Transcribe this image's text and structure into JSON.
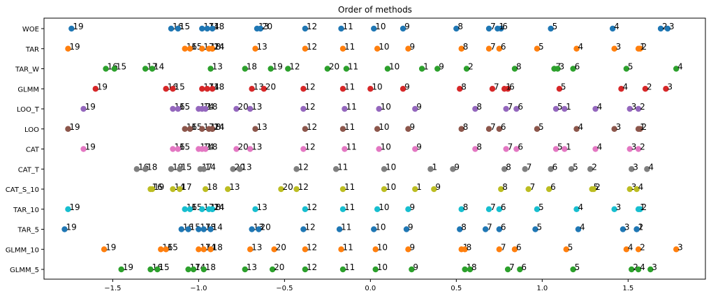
{
  "chart_data": {
    "type": "scatter",
    "title": "Order of methods",
    "xlabel": "",
    "ylabel": "",
    "xlim": [
      -1.9,
      1.95
    ],
    "xticks": [
      "−1.5",
      "−1.0",
      "−0.5",
      "0.0",
      "0.5",
      "1.0",
      "1.5"
    ],
    "xtick_values": [
      -1.5,
      -1.0,
      -0.5,
      0.0,
      0.5,
      1.0,
      1.5
    ],
    "grid": false,
    "series": [
      {
        "row": "WOE",
        "color": "#1f77b4",
        "points": [
          [
            -1.74,
            "19"
          ],
          [
            -1.16,
            "16"
          ],
          [
            -1.12,
            "15"
          ],
          [
            -0.98,
            "17"
          ],
          [
            -0.95,
            "14"
          ],
          [
            -0.92,
            "18"
          ],
          [
            -0.66,
            "13"
          ],
          [
            -0.64,
            "20"
          ],
          [
            -0.38,
            "12"
          ],
          [
            -0.17,
            "11"
          ],
          [
            0.02,
            "10"
          ],
          [
            0.19,
            "9"
          ],
          [
            0.5,
            "8"
          ],
          [
            0.69,
            "7"
          ],
          [
            0.76,
            "6"
          ],
          [
            0.74,
            "1"
          ],
          [
            1.05,
            "5"
          ],
          [
            1.41,
            "4"
          ],
          [
            1.69,
            "2"
          ],
          [
            1.73,
            "3"
          ]
        ]
      },
      {
        "row": "TAR",
        "color": "#ff7f0e",
        "points": [
          [
            -1.76,
            "19"
          ],
          [
            -1.08,
            "16"
          ],
          [
            -1.05,
            "15"
          ],
          [
            -0.98,
            "17"
          ],
          [
            -0.94,
            "18"
          ],
          [
            -0.92,
            "14"
          ],
          [
            -0.92,
            "24"
          ],
          [
            -0.67,
            "13"
          ],
          [
            -0.38,
            "12"
          ],
          [
            -0.16,
            "11"
          ],
          [
            0.04,
            "10"
          ],
          [
            0.22,
            "9"
          ],
          [
            0.53,
            "8"
          ],
          [
            0.69,
            "7"
          ],
          [
            0.75,
            "6"
          ],
          [
            0.97,
            "5"
          ],
          [
            1.2,
            "4"
          ],
          [
            1.42,
            "3"
          ],
          [
            1.57,
            "2"
          ],
          [
            1.56,
            "1"
          ]
        ]
      },
      {
        "row": "TAR_W",
        "color": "#2ca02c",
        "points": [
          [
            -1.54,
            "16"
          ],
          [
            -1.49,
            "15"
          ],
          [
            -1.31,
            "17"
          ],
          [
            -1.27,
            "14"
          ],
          [
            -0.93,
            "13"
          ],
          [
            -0.73,
            "18"
          ],
          [
            -0.58,
            "19"
          ],
          [
            -0.48,
            "12"
          ],
          [
            -0.25,
            "20"
          ],
          [
            -0.14,
            "11"
          ],
          [
            0.1,
            "10"
          ],
          [
            0.3,
            "1"
          ],
          [
            0.39,
            "9"
          ],
          [
            0.56,
            "2"
          ],
          [
            0.84,
            "8"
          ],
          [
            1.07,
            "7"
          ],
          [
            1.09,
            "3"
          ],
          [
            1.18,
            "6"
          ],
          [
            1.49,
            "5"
          ],
          [
            1.78,
            "4"
          ]
        ]
      },
      {
        "row": "GLMM",
        "color": "#d62728",
        "points": [
          [
            -1.6,
            "19"
          ],
          [
            -1.19,
            "16"
          ],
          [
            -1.15,
            "15"
          ],
          [
            -0.98,
            "17"
          ],
          [
            -0.95,
            "14"
          ],
          [
            -0.92,
            "18"
          ],
          [
            -0.69,
            "13"
          ],
          [
            -0.62,
            "20"
          ],
          [
            -0.39,
            "12"
          ],
          [
            -0.16,
            "11"
          ],
          [
            0.0,
            "10"
          ],
          [
            0.19,
            "9"
          ],
          [
            0.52,
            "8"
          ],
          [
            0.71,
            "7"
          ],
          [
            0.8,
            "6"
          ],
          [
            0.78,
            "1"
          ],
          [
            1.1,
            "5"
          ],
          [
            1.46,
            "4"
          ],
          [
            1.6,
            "2"
          ],
          [
            1.72,
            "3"
          ]
        ]
      },
      {
        "row": "LOO_T",
        "color": "#9467bd",
        "points": [
          [
            -1.67,
            "19"
          ],
          [
            -1.15,
            "16"
          ],
          [
            -1.12,
            "15"
          ],
          [
            -1.0,
            "17"
          ],
          [
            -0.98,
            "14"
          ],
          [
            -0.96,
            "18"
          ],
          [
            -0.78,
            "20"
          ],
          [
            -0.7,
            "13"
          ],
          [
            -0.39,
            "12"
          ],
          [
            -0.15,
            "11"
          ],
          [
            0.05,
            "10"
          ],
          [
            0.26,
            "9"
          ],
          [
            0.61,
            "8"
          ],
          [
            0.79,
            "7"
          ],
          [
            0.85,
            "6"
          ],
          [
            1.08,
            "5"
          ],
          [
            1.13,
            "1"
          ],
          [
            1.31,
            "4"
          ],
          [
            1.51,
            "3"
          ],
          [
            1.56,
            "2"
          ]
        ]
      },
      {
        "row": "LOO",
        "color": "#8c564b",
        "points": [
          [
            -1.76,
            "19"
          ],
          [
            -1.08,
            "16"
          ],
          [
            -1.05,
            "15"
          ],
          [
            -0.98,
            "17"
          ],
          [
            -0.94,
            "18"
          ],
          [
            -0.92,
            "14"
          ],
          [
            -0.92,
            "24"
          ],
          [
            -0.67,
            "13"
          ],
          [
            -0.38,
            "12"
          ],
          [
            -0.16,
            "11"
          ],
          [
            0.04,
            "10"
          ],
          [
            0.22,
            "9"
          ],
          [
            0.53,
            "8"
          ],
          [
            0.69,
            "7"
          ],
          [
            0.75,
            "6"
          ],
          [
            0.97,
            "5"
          ],
          [
            1.2,
            "4"
          ],
          [
            1.42,
            "3"
          ],
          [
            1.57,
            "2"
          ],
          [
            1.56,
            "1"
          ]
        ]
      },
      {
        "row": "CAT",
        "color": "#e377c2",
        "points": [
          [
            -1.67,
            "19"
          ],
          [
            -1.15,
            "16"
          ],
          [
            -1.12,
            "15"
          ],
          [
            -1.0,
            "17"
          ],
          [
            -0.98,
            "14"
          ],
          [
            -0.96,
            "18"
          ],
          [
            -0.78,
            "20"
          ],
          [
            -0.7,
            "13"
          ],
          [
            -0.39,
            "12"
          ],
          [
            -0.15,
            "11"
          ],
          [
            0.05,
            "10"
          ],
          [
            0.26,
            "9"
          ],
          [
            0.61,
            "8"
          ],
          [
            0.79,
            "7"
          ],
          [
            0.85,
            "6"
          ],
          [
            1.08,
            "5"
          ],
          [
            1.13,
            "1"
          ],
          [
            1.31,
            "4"
          ],
          [
            1.51,
            "3"
          ],
          [
            1.56,
            "2"
          ]
        ]
      },
      {
        "row": "CAT_T",
        "color": "#7f7f7f",
        "points": [
          [
            -1.36,
            "16"
          ],
          [
            -1.31,
            "18"
          ],
          [
            -1.16,
            "19"
          ],
          [
            -1.11,
            "15"
          ],
          [
            -0.99,
            "17"
          ],
          [
            -0.97,
            "14"
          ],
          [
            -0.8,
            "20"
          ],
          [
            -0.76,
            "13"
          ],
          [
            -0.43,
            "12"
          ],
          [
            -0.2,
            "11"
          ],
          [
            0.08,
            "10"
          ],
          [
            0.35,
            "1"
          ],
          [
            0.48,
            "9"
          ],
          [
            0.78,
            "8"
          ],
          [
            0.9,
            "7"
          ],
          [
            1.05,
            "6"
          ],
          [
            1.17,
            "5"
          ],
          [
            1.28,
            "2"
          ],
          [
            1.52,
            "3"
          ],
          [
            1.61,
            "4"
          ]
        ]
      },
      {
        "row": "CAT_S_10",
        "color": "#bcbd22",
        "points": [
          [
            -1.28,
            "16"
          ],
          [
            -1.27,
            "19"
          ],
          [
            -1.15,
            "14"
          ],
          [
            -1.11,
            "17"
          ],
          [
            -0.96,
            "18"
          ],
          [
            -0.83,
            "13"
          ],
          [
            -0.52,
            "20"
          ],
          [
            -0.43,
            "12"
          ],
          [
            -0.16,
            "11"
          ],
          [
            0.08,
            "10"
          ],
          [
            0.26,
            "1"
          ],
          [
            0.37,
            "9"
          ],
          [
            0.76,
            "8"
          ],
          [
            0.92,
            "7"
          ],
          [
            1.04,
            "6"
          ],
          [
            1.29,
            "5"
          ],
          [
            1.3,
            "2"
          ],
          [
            1.51,
            "3"
          ],
          [
            1.55,
            "4"
          ]
        ]
      },
      {
        "row": "TAR_10",
        "color": "#17becf",
        "points": [
          [
            -1.76,
            "19"
          ],
          [
            -1.08,
            "16"
          ],
          [
            -1.05,
            "15"
          ],
          [
            -0.98,
            "17"
          ],
          [
            -0.94,
            "18"
          ],
          [
            -0.92,
            "14"
          ],
          [
            -0.92,
            "24"
          ],
          [
            -0.67,
            "13"
          ],
          [
            -0.38,
            "12"
          ],
          [
            -0.16,
            "11"
          ],
          [
            0.04,
            "10"
          ],
          [
            0.22,
            "9"
          ],
          [
            0.53,
            "8"
          ],
          [
            0.69,
            "7"
          ],
          [
            0.75,
            "6"
          ],
          [
            0.97,
            "5"
          ],
          [
            1.2,
            "4"
          ],
          [
            1.42,
            "3"
          ],
          [
            1.57,
            "2"
          ],
          [
            1.56,
            "1"
          ]
        ]
      },
      {
        "row": "TAR_5",
        "color": "#1f77b4",
        "points": [
          [
            -1.78,
            "19"
          ],
          [
            -1.1,
            "16"
          ],
          [
            -1.06,
            "15"
          ],
          [
            -1.0,
            "17"
          ],
          [
            -0.97,
            "18"
          ],
          [
            -0.93,
            "14"
          ],
          [
            -0.69,
            "13"
          ],
          [
            -0.65,
            "20"
          ],
          [
            -0.39,
            "12"
          ],
          [
            -0.18,
            "11"
          ],
          [
            0.02,
            "10"
          ],
          [
            0.21,
            "9"
          ],
          [
            0.52,
            "8"
          ],
          [
            0.67,
            "7"
          ],
          [
            0.75,
            "6"
          ],
          [
            0.96,
            "5"
          ],
          [
            1.21,
            "4"
          ],
          [
            1.47,
            "3"
          ],
          [
            1.55,
            "2"
          ],
          [
            1.55,
            "1"
          ]
        ]
      },
      {
        "row": "GLMM_10",
        "color": "#ff7f0e",
        "points": [
          [
            -1.55,
            "19"
          ],
          [
            -1.22,
            "16"
          ],
          [
            -1.19,
            "15"
          ],
          [
            -1.0,
            "17"
          ],
          [
            -0.97,
            "14"
          ],
          [
            -0.93,
            "18"
          ],
          [
            -0.7,
            "13"
          ],
          [
            -0.56,
            "20"
          ],
          [
            -0.38,
            "12"
          ],
          [
            -0.17,
            "11"
          ],
          [
            0.03,
            "10"
          ],
          [
            0.22,
            "9"
          ],
          [
            0.53,
            "1"
          ],
          [
            0.55,
            "8"
          ],
          [
            0.75,
            "7"
          ],
          [
            0.84,
            "6"
          ],
          [
            1.14,
            "5"
          ],
          [
            1.49,
            "4"
          ],
          [
            1.56,
            "2"
          ],
          [
            1.78,
            "3"
          ]
        ]
      },
      {
        "row": "GLMM_5",
        "color": "#2ca02c",
        "points": [
          [
            -1.45,
            "19"
          ],
          [
            -1.28,
            "16"
          ],
          [
            -1.24,
            "15"
          ],
          [
            -1.06,
            "17"
          ],
          [
            -1.03,
            "14"
          ],
          [
            -0.97,
            "18"
          ],
          [
            -0.73,
            "13"
          ],
          [
            -0.57,
            "20"
          ],
          [
            -0.38,
            "12"
          ],
          [
            -0.16,
            "11"
          ],
          [
            0.03,
            "10"
          ],
          [
            0.24,
            "9"
          ],
          [
            0.55,
            "1"
          ],
          [
            0.58,
            "8"
          ],
          [
            0.8,
            "7"
          ],
          [
            0.87,
            "6"
          ],
          [
            1.18,
            "5"
          ],
          [
            1.52,
            "2"
          ],
          [
            1.56,
            "4"
          ],
          [
            1.63,
            "3"
          ]
        ]
      }
    ]
  }
}
